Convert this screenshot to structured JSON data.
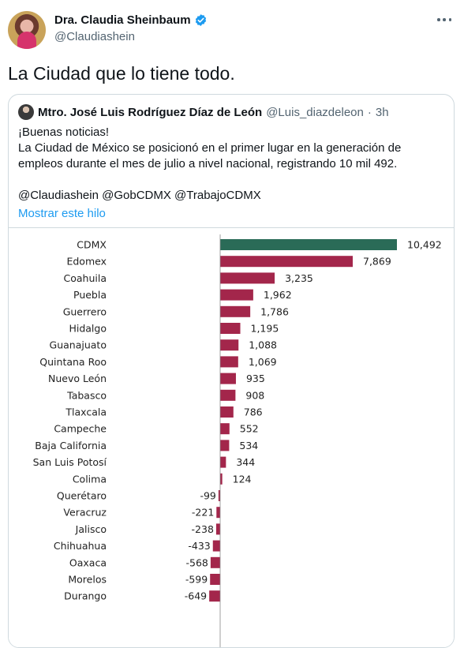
{
  "tweet": {
    "display_name": "Dra. Claudia Sheinbaum",
    "handle": "@Claudiashein",
    "text": "La Ciudad que lo tiene todo.",
    "verified_icon": "verified-badge-icon",
    "more_icon": "more-options-icon"
  },
  "quoted": {
    "display_name": "Mtro. José Luis Rodríguez Díaz de León",
    "handle": "@Luis_diazdeleon",
    "separator": "·",
    "time": "3h",
    "body_lines": [
      "¡Buenas noticias!",
      "La Ciudad de México se posicionó en el primer lugar en la generación de empleos durante el mes de julio a nivel nacional, registrando 10 mil 492.",
      "@Claudiashein @GobCDMX @TrabajoCDMX"
    ],
    "show_thread": "Mostrar este hilo"
  },
  "colors": {
    "highlight_bar": "#2a6b57",
    "bar": "#a3264b",
    "link": "#1d9bf0",
    "verified": "#1d9bf0"
  },
  "chart_data": {
    "type": "bar",
    "orientation": "horizontal",
    "categories": [
      "CDMX",
      "Edomex",
      "Coahuila",
      "Puebla",
      "Guerrero",
      "Hidalgo",
      "Guanajuato",
      "Quintana Roo",
      "Nuevo León",
      "Tabasco",
      "Tlaxcala",
      "Campeche",
      "Baja California",
      "San Luis Potosí",
      "Colima",
      "Querétaro",
      "Veracruz",
      "Jalisco",
      "Chihuahua",
      "Oaxaca",
      "Morelos",
      "Durango"
    ],
    "values": [
      10492,
      7869,
      3235,
      1962,
      1786,
      1195,
      1088,
      1069,
      935,
      908,
      786,
      552,
      534,
      344,
      124,
      -99,
      -221,
      -238,
      -433,
      -568,
      -599,
      -649
    ],
    "value_labels": [
      "10,492",
      "7,869",
      "3,235",
      "1,962",
      "1,786",
      "1,195",
      "1,088",
      "1,069",
      "935",
      "908",
      "786",
      "552",
      "534",
      "344",
      "124",
      "-99",
      "-221",
      "-238",
      "-433",
      "-568",
      "-599",
      "-649"
    ],
    "highlight_category": "CDMX",
    "xlim": [
      -649,
      10492
    ]
  }
}
